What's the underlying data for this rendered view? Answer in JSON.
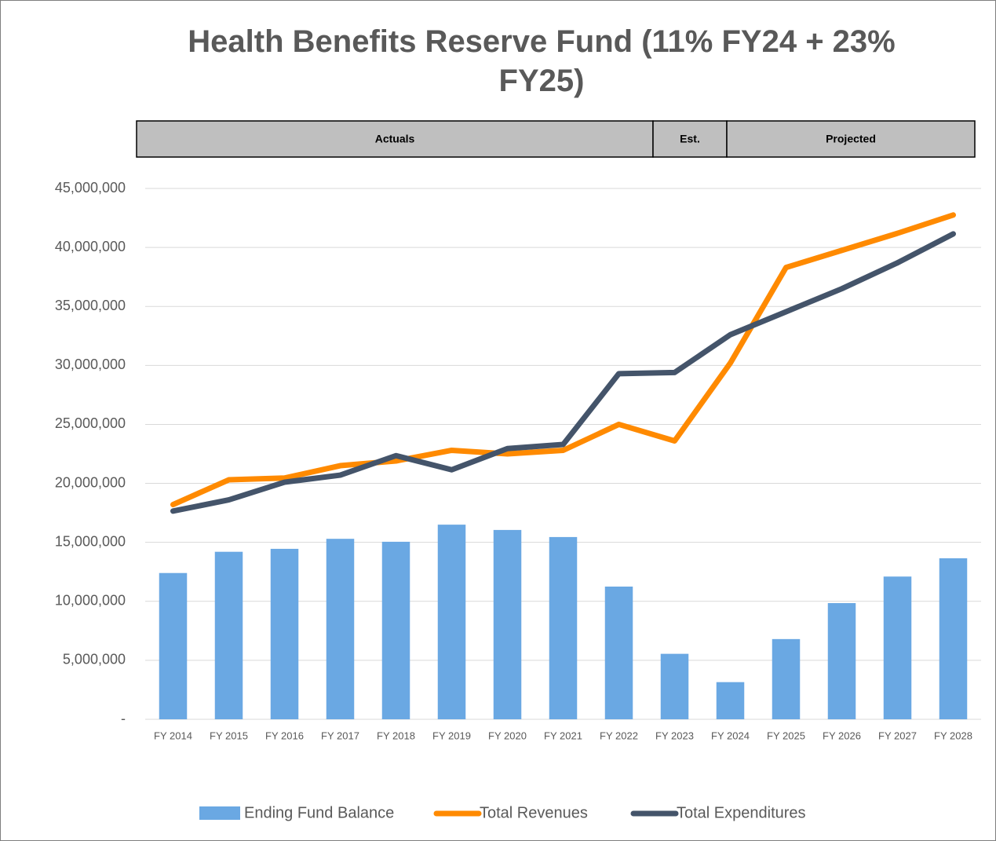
{
  "chart_data": {
    "type": "bar-line",
    "title": "Health Benefits Reserve Fund (11% FY24 + 23% FY25)",
    "periods": [
      "Actuals",
      "Est.",
      "Projected"
    ],
    "categories": [
      "FY 2014",
      "FY 2015",
      "FY 2016",
      "FY 2017",
      "FY 2018",
      "FY 2019",
      "FY 2020",
      "FY 2021",
      "FY 2022",
      "FY 2023",
      "FY 2024",
      "FY 2025",
      "FY 2026",
      "FY 2027",
      "FY 2028"
    ],
    "series": [
      {
        "name": "Ending Fund Balance",
        "type": "bar",
        "color": "#6aa8e3",
        "values": [
          12400000,
          14200000,
          14450000,
          15300000,
          15050000,
          16500000,
          16050000,
          15450000,
          11250000,
          5550000,
          3150000,
          6800000,
          9850000,
          12100000,
          13650000
        ]
      },
      {
        "name": "Total Revenues",
        "type": "line",
        "color": "#ff8a00",
        "values": [
          18200000,
          20300000,
          20450000,
          21500000,
          21900000,
          22800000,
          22500000,
          22800000,
          25000000,
          23600000,
          30200000,
          38300000,
          39750000,
          41200000,
          42750000
        ]
      },
      {
        "name": "Total Expenditures",
        "type": "line",
        "color": "#44546a",
        "values": [
          17650000,
          18600000,
          20100000,
          20700000,
          22350000,
          21150000,
          22950000,
          23300000,
          29300000,
          29400000,
          32600000,
          34550000,
          36500000,
          38700000,
          41150000
        ]
      }
    ],
    "ylim": [
      0,
      45000000
    ],
    "yticks": [
      {
        "value": 0,
        "label": "-"
      },
      {
        "value": 5000000,
        "label": "5,000,000"
      },
      {
        "value": 10000000,
        "label": "10,000,000"
      },
      {
        "value": 15000000,
        "label": "15,000,000"
      },
      {
        "value": 20000000,
        "label": "20,000,000"
      },
      {
        "value": 25000000,
        "label": "25,000,000"
      },
      {
        "value": 30000000,
        "label": "30,000,000"
      },
      {
        "value": 35000000,
        "label": "35,000,000"
      },
      {
        "value": 40000000,
        "label": "40,000,000"
      },
      {
        "value": 45000000,
        "label": "45,000,000"
      }
    ],
    "grid": true,
    "legend": "bottom"
  }
}
